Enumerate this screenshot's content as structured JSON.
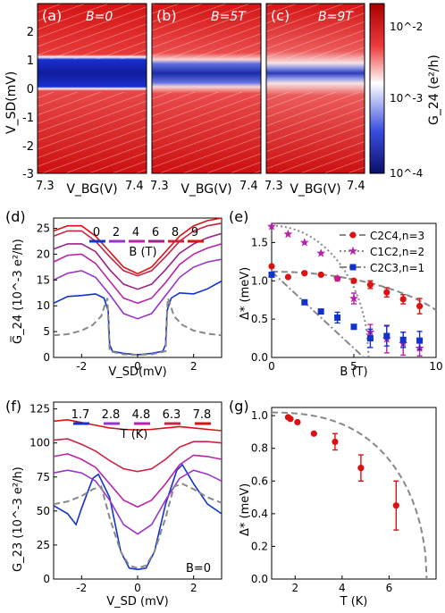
{
  "figure": {
    "top_panels": [
      {
        "label": "(a)",
        "field_text": "B=0"
      },
      {
        "label": "(b)",
        "field_text": "B=5T"
      },
      {
        "label": "(c)",
        "field_text": "B=9T"
      }
    ],
    "top_y_ticks": [
      "2",
      "1",
      "0",
      "-1",
      "-2",
      "-3"
    ],
    "top_x_ticks": [
      "7.3",
      "7.4"
    ],
    "top_ylabel": "V_SD(mV)",
    "top_xlabel": "V_BG(V)",
    "colorbar_label": "G_24 (e²/h)",
    "colorbar_ticks": [
      "10^-2",
      "10^-3",
      "10^-4"
    ]
  },
  "colors": {
    "red": "#dd1111",
    "blue": "#1133cc",
    "purple": "#9933cc",
    "magenta": "#bb22aa",
    "plum": "#992288",
    "crimson": "#cc2244",
    "dash_gray": "#888888"
  },
  "chart_data": [
    {
      "panel": "(d)",
      "type": "line",
      "xlabel": "V_SD(mV)",
      "ylabel": "G̅_24 (10^-3 e²/h)",
      "xlim": [
        -3,
        3
      ],
      "ylim": [
        0,
        27
      ],
      "xticks": [
        "-2",
        "0",
        "2"
      ],
      "yticks": [
        "0",
        "5",
        "10",
        "15",
        "20",
        "25"
      ],
      "legend_title": "B (T)",
      "series": [
        {
          "name": "0",
          "color": "#1133cc",
          "x": [
            -3,
            -2.5,
            -2,
            -1.5,
            -1.2,
            -1.05,
            -1.0,
            -0.9,
            -0.5,
            0,
            0.5,
            0.9,
            1.0,
            1.05,
            1.2,
            1.5,
            2,
            2.5,
            3
          ],
          "y": [
            10.5,
            11.8,
            12,
            12.3,
            11.5,
            9,
            2.5,
            1.2,
            0.8,
            0.5,
            0.8,
            1.2,
            2.5,
            9,
            11.5,
            12.5,
            12.3,
            13.3,
            14.8
          ]
        },
        {
          "name": "2",
          "color": "#9933cc",
          "x": [
            -3,
            -2.5,
            -2,
            -1.5,
            -1,
            -0.5,
            0,
            0.5,
            1,
            1.5,
            2,
            2.5,
            3
          ],
          "y": [
            15,
            16.3,
            16.8,
            15.5,
            12.2,
            8.5,
            7.5,
            8.5,
            12,
            15.5,
            17.5,
            18.5,
            19
          ]
        },
        {
          "name": "4",
          "color": "#bb22aa",
          "x": [
            -3,
            -2.5,
            -2,
            -1.5,
            -1,
            -0.5,
            0,
            0.5,
            1,
            1.5,
            2,
            2.5,
            3
          ],
          "y": [
            18.5,
            19.8,
            20,
            18.2,
            14.8,
            11.5,
            10.5,
            11.5,
            14.5,
            18,
            20,
            21.2,
            22
          ]
        },
        {
          "name": "6",
          "color": "#992288",
          "x": [
            -3,
            -2.5,
            -2,
            -1.5,
            -1,
            -0.5,
            0,
            0.5,
            1,
            1.5,
            2,
            2.5,
            3
          ],
          "y": [
            21,
            22,
            22,
            20.5,
            17,
            14.2,
            13.2,
            14.2,
            17,
            20.2,
            22,
            23.2,
            24
          ]
        },
        {
          "name": "8",
          "color": "#cc2244",
          "x": [
            -3,
            -2.5,
            -2,
            -1.5,
            -1,
            -0.5,
            0,
            0.5,
            1,
            1.5,
            2,
            2.5,
            3
          ],
          "y": [
            23.5,
            24.5,
            24.5,
            22.5,
            19.5,
            16.8,
            15.8,
            16.8,
            19.5,
            22.5,
            24.5,
            25.5,
            26
          ]
        },
        {
          "name": "9",
          "color": "#dd1111",
          "x": [
            -3,
            -2.5,
            -2,
            -1.5,
            -1,
            -0.5,
            0,
            0.5,
            1,
            1.5,
            2,
            2.5,
            3
          ],
          "y": [
            24.5,
            25.5,
            25.5,
            23.5,
            20.5,
            17.5,
            16.2,
            17.5,
            20.5,
            23.5,
            25.5,
            26.5,
            27
          ]
        },
        {
          "name": "",
          "color": "#888888",
          "dashed": true,
          "x": [
            -3,
            -2.5,
            -2,
            -1.6,
            -1.3,
            -1.15,
            -1.08,
            -1.0,
            -0.5,
            0,
            0.5,
            1.0,
            1.08,
            1.15,
            1.3,
            1.6,
            2,
            2.5,
            3
          ],
          "y": [
            4.3,
            4.5,
            5.2,
            6.3,
            8,
            10.5,
            11.5,
            1.2,
            0.6,
            0.5,
            0.6,
            1.2,
            11.5,
            10.5,
            8,
            6.3,
            5.2,
            4.6,
            4.3
          ]
        }
      ]
    },
    {
      "panel": "(e)",
      "type": "scatter",
      "xlabel": "B (T)",
      "ylabel": "Δ* (meV)",
      "xlim": [
        0,
        10
      ],
      "ylim": [
        0,
        1.75
      ],
      "xticks": [
        "0",
        "5",
        "10"
      ],
      "yticks": [
        "0.0",
        "0.5",
        "1.0",
        "1.5"
      ],
      "series": [
        {
          "name": "C2C4,n=3",
          "color": "#dd1111",
          "marker": "circle",
          "x": [
            0,
            1,
            2,
            3,
            4,
            5,
            6,
            7,
            8,
            9
          ],
          "y": [
            1.19,
            1.05,
            1.1,
            1.08,
            1.03,
            1.0,
            0.95,
            0.85,
            0.76,
            0.67
          ],
          "err": [
            0,
            0,
            0,
            0,
            0,
            0,
            0.05,
            0.06,
            0.06,
            0.1
          ],
          "fit": "dashed"
        },
        {
          "name": "C1C2,n=2",
          "color": "#bb22aa",
          "marker": "star",
          "x": [
            0,
            1,
            2,
            3,
            4,
            5,
            6,
            7,
            8,
            9
          ],
          "y": [
            1.71,
            1.61,
            1.5,
            1.36,
            1.03,
            0.77,
            0.33,
            0.24,
            0.18,
            0.12
          ],
          "err": [
            0,
            0,
            0,
            0,
            0,
            0.07,
            0.1,
            0.18,
            0.15,
            0.1
          ],
          "fit": "dotted"
        },
        {
          "name": "C2C3,n=1",
          "color": "#1133cc",
          "marker": "square",
          "x": [
            0,
            2,
            3,
            4,
            5,
            6,
            7,
            8,
            9
          ],
          "y": [
            1.08,
            0.72,
            0.6,
            0.52,
            0.4,
            0.25,
            0.28,
            0.23,
            0.22
          ],
          "err": [
            0,
            0,
            0,
            0.07,
            0,
            0.12,
            0.13,
            0.1,
            0.12
          ],
          "fit": "dashdot"
        }
      ]
    },
    {
      "panel": "(f)",
      "type": "line",
      "xlabel": "V_SD (mV)",
      "ylabel": "G_23 (10^-3 e²/h)",
      "xlim": [
        -3,
        3
      ],
      "ylim": [
        0,
        130
      ],
      "xticks": [
        "-2",
        "0",
        "2"
      ],
      "yticks": [
        "0",
        "25",
        "50",
        "75",
        "100",
        "125"
      ],
      "legend_title": "T (K)",
      "annotation": "B=0",
      "series": [
        {
          "name": "1.7",
          "color": "#1133cc",
          "x": [
            -3,
            -2.5,
            -2.2,
            -2,
            -1.6,
            -1.4,
            -1.0,
            -0.6,
            -0.3,
            0,
            0.3,
            0.6,
            1.0,
            1.4,
            1.6,
            2,
            2.5,
            3
          ],
          "y": [
            54,
            48,
            40,
            52,
            74,
            77,
            60,
            20,
            8,
            7,
            8,
            20,
            55,
            80,
            84,
            70,
            55,
            48
          ]
        },
        {
          "name": "2.8",
          "color": "#9933cc",
          "x": [
            -3,
            -2.5,
            -2,
            -1.5,
            -1.0,
            -0.5,
            0,
            0.5,
            1.0,
            1.5,
            2,
            2.5,
            3
          ],
          "y": [
            78,
            80,
            78,
            72,
            58,
            40,
            33,
            40,
            58,
            74,
            80,
            77,
            72
          ]
        },
        {
          "name": "4.8",
          "color": "#bb22aa",
          "x": [
            -3,
            -2.5,
            -2,
            -1.5,
            -1.0,
            -0.5,
            0,
            0.5,
            1.0,
            1.5,
            2,
            2.5,
            3
          ],
          "y": [
            90,
            92,
            88,
            82,
            70,
            58,
            53,
            58,
            70,
            84,
            91,
            90,
            88
          ]
        },
        {
          "name": "6.3",
          "color": "#cc2244",
          "x": [
            -3,
            -2.5,
            -2,
            -1.5,
            -1.0,
            -0.5,
            0,
            0.5,
            1.0,
            1.5,
            2,
            2.5,
            3
          ],
          "y": [
            102,
            103,
            99,
            94,
            87,
            81,
            79,
            81,
            88,
            97,
            101,
            101,
            100
          ]
        },
        {
          "name": "7.8",
          "color": "#dd1111",
          "x": [
            -3,
            -2.5,
            -2,
            -1.5,
            -1.0,
            -0.5,
            0,
            0.5,
            1.0,
            1.5,
            2,
            2.5,
            3
          ],
          "y": [
            116,
            117,
            115,
            113,
            111,
            110,
            109.5,
            110,
            111,
            112,
            111,
            110,
            109
          ]
        },
        {
          "name": "",
          "color": "#888888",
          "dashed": true,
          "x": [
            -3,
            -2.5,
            -2,
            -1.6,
            -1.3,
            -1.0,
            -0.6,
            -0.3,
            0,
            0.3,
            0.6,
            1.0,
            1.3,
            1.6,
            2,
            2.5,
            3
          ],
          "y": [
            55,
            57,
            61,
            66,
            68,
            45,
            20,
            10,
            8,
            10,
            20,
            45,
            68,
            70,
            66,
            60,
            56
          ]
        }
      ]
    },
    {
      "panel": "(g)",
      "type": "scatter",
      "xlabel": "T (K)",
      "ylabel": "Δ* (meV)",
      "xlim": [
        1,
        8
      ],
      "ylim": [
        0,
        1.05
      ],
      "xticks": [
        "2",
        "4",
        "6"
      ],
      "yticks": [
        "0.0",
        "0.2",
        "0.4",
        "0.6",
        "0.8",
        "1.0"
      ],
      "series": [
        {
          "name": "",
          "color": "#dd1111",
          "marker": "circle",
          "x": [
            1.7,
            1.8,
            2.1,
            2.8,
            3.7,
            4.8,
            6.3
          ],
          "y": [
            0.99,
            0.98,
            0.96,
            0.89,
            0.84,
            0.68,
            0.45
          ],
          "err": [
            0,
            0,
            0,
            0,
            0.05,
            0.08,
            0.15
          ]
        }
      ],
      "fit": {
        "color": "#888888",
        "dashed": true,
        "tc": 7.6,
        "delta0": 1.02
      }
    }
  ]
}
